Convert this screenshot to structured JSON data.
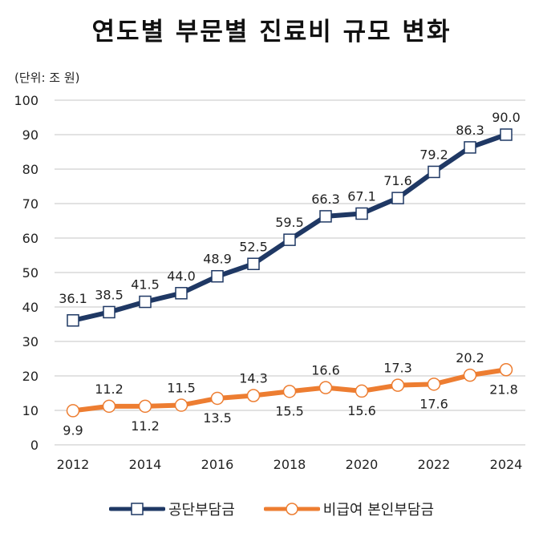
{
  "chart_data": {
    "type": "line",
    "title": "연도별 부문별 진료비 규모 변화",
    "unit_label": "(단위: 조 원)",
    "x": [
      2012,
      2013,
      2014,
      2015,
      2016,
      2017,
      2018,
      2019,
      2020,
      2021,
      2022,
      2023,
      2024
    ],
    "x_tick_labels": [
      "2012",
      "2014",
      "2016",
      "2018",
      "2020",
      "2022",
      "2024"
    ],
    "x_tick_values": [
      2012,
      2014,
      2016,
      2018,
      2020,
      2022,
      2024
    ],
    "y_tick_labels": [
      "0",
      "10",
      "20",
      "30",
      "40",
      "50",
      "60",
      "70",
      "80",
      "90",
      "100"
    ],
    "ylim": [
      0,
      100
    ],
    "grid": true,
    "legend_position": "bottom",
    "series": [
      {
        "name": "공단부담금",
        "color": "#1f3864",
        "marker": "square",
        "values": [
          36.1,
          38.5,
          41.5,
          44.0,
          48.9,
          52.5,
          59.5,
          66.3,
          67.1,
          71.6,
          79.2,
          86.3,
          90.0
        ],
        "labels": [
          "36.1",
          "38.5",
          "41.5",
          "44.0",
          "48.9",
          "52.5",
          "59.5",
          "66.3",
          "67.1",
          "71.6",
          "79.2",
          "86.3",
          "90.0"
        ]
      },
      {
        "name": "비급여 본인부담금",
        "color": "#ed7d31",
        "marker": "circle",
        "values": [
          9.9,
          11.2,
          11.2,
          11.5,
          13.5,
          14.3,
          15.5,
          16.6,
          15.6,
          17.3,
          17.6,
          20.2,
          21.8
        ],
        "labels": [
          "9.9",
          "11.2",
          "11.2",
          "11.5",
          "13.5",
          "14.3",
          "15.5",
          "16.6",
          "15.6",
          "17.3",
          "17.6",
          "20.2",
          "21.8"
        ]
      }
    ]
  }
}
